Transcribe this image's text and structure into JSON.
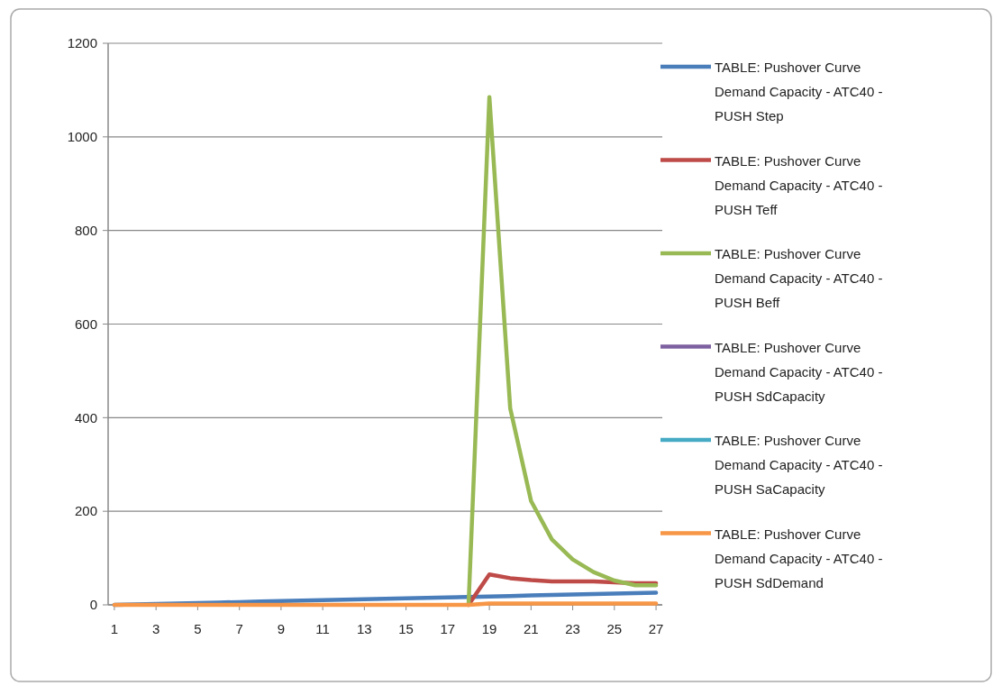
{
  "chart_data": {
    "type": "line",
    "x": [
      1,
      2,
      3,
      4,
      5,
      6,
      7,
      8,
      9,
      10,
      11,
      12,
      13,
      14,
      15,
      16,
      17,
      18,
      19,
      20,
      21,
      22,
      23,
      24,
      25,
      26,
      27
    ],
    "xlim": [
      0.7,
      27.3
    ],
    "xticks": [
      1,
      3,
      5,
      7,
      9,
      11,
      13,
      15,
      17,
      19,
      21,
      23,
      25,
      27
    ],
    "series": [
      {
        "name": "TABLE:  Pushover Curve Demand Capacity - ATC40 - PUSH Step",
        "color": "#4a7ebb",
        "values": [
          0,
          1,
          2,
          3,
          4,
          5,
          6,
          7,
          8,
          9,
          10,
          11,
          12,
          13,
          14,
          15,
          16,
          17,
          18,
          19,
          20,
          21,
          22,
          23,
          24,
          25,
          26
        ]
      },
      {
        "name": "TABLE:  Pushover Curve Demand Capacity - ATC40 - PUSH Teff",
        "color": "#be4b48",
        "values": [
          null,
          null,
          null,
          null,
          null,
          null,
          null,
          null,
          null,
          null,
          null,
          null,
          null,
          null,
          null,
          null,
          null,
          0,
          65,
          57,
          53,
          50,
          50,
          50,
          48,
          46,
          46
        ]
      },
      {
        "name": "TABLE:  Pushover Curve Demand Capacity - ATC40 - PUSH Beff",
        "color": "#98b954",
        "values": [
          null,
          null,
          null,
          null,
          null,
          null,
          null,
          null,
          null,
          null,
          null,
          null,
          null,
          null,
          null,
          null,
          null,
          0,
          1085,
          420,
          222,
          140,
          97,
          70,
          52,
          42,
          42
        ]
      },
      {
        "name": "TABLE:  Pushover Curve Demand Capacity - ATC40 - PUSH SdCapacity",
        "color": "#7d60a0",
        "values": [
          null,
          null,
          null,
          null,
          null,
          null,
          null,
          null,
          null,
          null,
          null,
          null,
          null,
          null,
          null,
          null,
          null,
          null,
          null,
          null,
          null,
          null,
          null,
          null,
          null,
          null,
          null
        ]
      },
      {
        "name": "TABLE:  Pushover Curve Demand Capacity - ATC40 - PUSH SaCapacity",
        "color": "#46aac5",
        "values": [
          null,
          null,
          null,
          null,
          null,
          null,
          null,
          null,
          null,
          null,
          null,
          null,
          null,
          null,
          null,
          null,
          null,
          null,
          null,
          null,
          null,
          null,
          null,
          null,
          null,
          null,
          null
        ]
      },
      {
        "name": "TABLE:  Pushover Curve Demand Capacity - ATC40 - PUSH SdDemand",
        "color": "#f79646",
        "values": [
          0,
          0,
          0,
          0,
          0,
          0,
          0,
          0,
          0,
          0,
          0,
          0,
          0,
          0,
          0,
          0,
          0,
          0,
          3,
          3,
          3,
          3,
          3,
          3,
          3,
          3,
          3
        ]
      }
    ],
    "ylim": [
      0,
      1200
    ],
    "yticks": [
      0,
      200,
      400,
      600,
      800,
      1000,
      1200
    ],
    "grid": "y",
    "legend": "right",
    "marker": "none",
    "line_style": "solid"
  }
}
